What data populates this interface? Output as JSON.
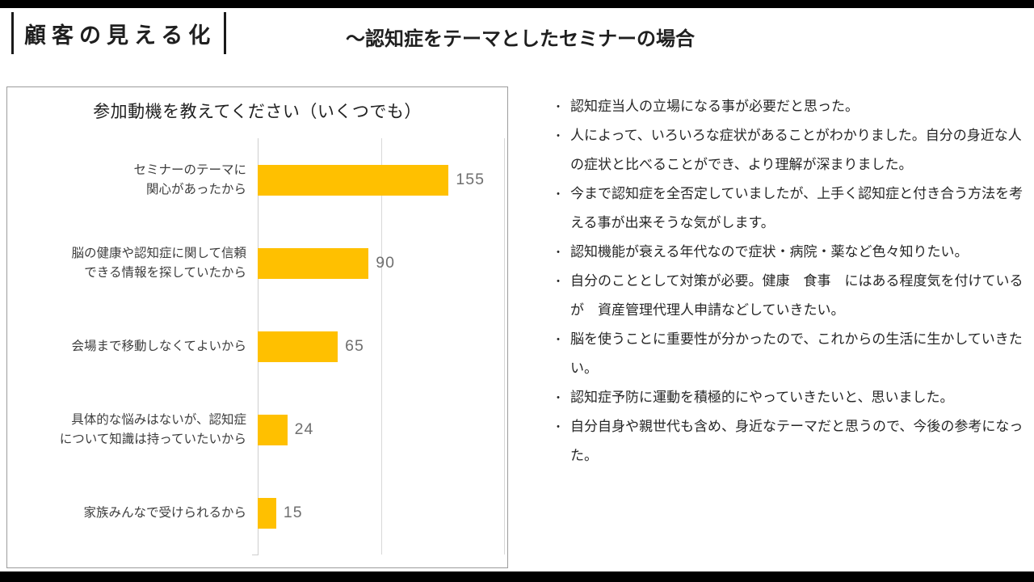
{
  "slide": {
    "header": {
      "title": "顧客の見える化",
      "subtitle": "～認知症をテーマとしたセミナーの場合"
    },
    "colors": {
      "bar_fill": "#FFC000",
      "top_rule": "#000000",
      "bottom_rule": "#000000",
      "panel_border": "#9c9c9c",
      "gridline": "#d8d8d8",
      "value_label": "#6f6f6f"
    }
  },
  "chart_data": {
    "type": "bar",
    "orientation": "horizontal",
    "title": "参加動機を教えてください（いくつでも）",
    "categories": [
      "セミナーのテーマに\n関心があったから",
      "脳の健康や認知症に関して信頼\nできる情報を探していたから",
      "会場まで移動しなくてよいから",
      "具体的な悩みはないが、認知症\nについて知識は持っていたいから",
      "家族みんなで受けられるから"
    ],
    "values": [
      155,
      90,
      65,
      24,
      15
    ],
    "data_labels": [
      "155",
      "90",
      "65",
      "24",
      "15"
    ],
    "xlim": [
      0,
      200
    ],
    "gridlines_x": [
      0,
      100,
      200
    ],
    "xlabel": "",
    "ylabel": "",
    "legend": "none",
    "bar_color": "#FFC000"
  },
  "comments": {
    "bullet_char": "・",
    "items": [
      "認知症当人の立場になる事が必要だと思った。",
      "人によって、いろいろな症状があることがわかりました。自分の身近な人の症状と比べることができ、より理解が深まりました。",
      "今まで認知症を全否定していましたが、上手く認知症と付き合う方法を考える事が出来そうな気がします。",
      "認知機能が衰える年代なので症状・病院・薬など色々知りたい。",
      "自分のこととして対策が必要。健康　食事　にはある程度気を付けているが　資産管理代理人申請などしていきたい。",
      "脳を使うことに重要性が分かったので、これからの生活に生かしていきたい。",
      "認知症予防に運動を積極的にやっていきたいと、思いました。",
      "自分自身や親世代も含め、身近なテーマだと思うので、今後の参考になった。"
    ]
  }
}
